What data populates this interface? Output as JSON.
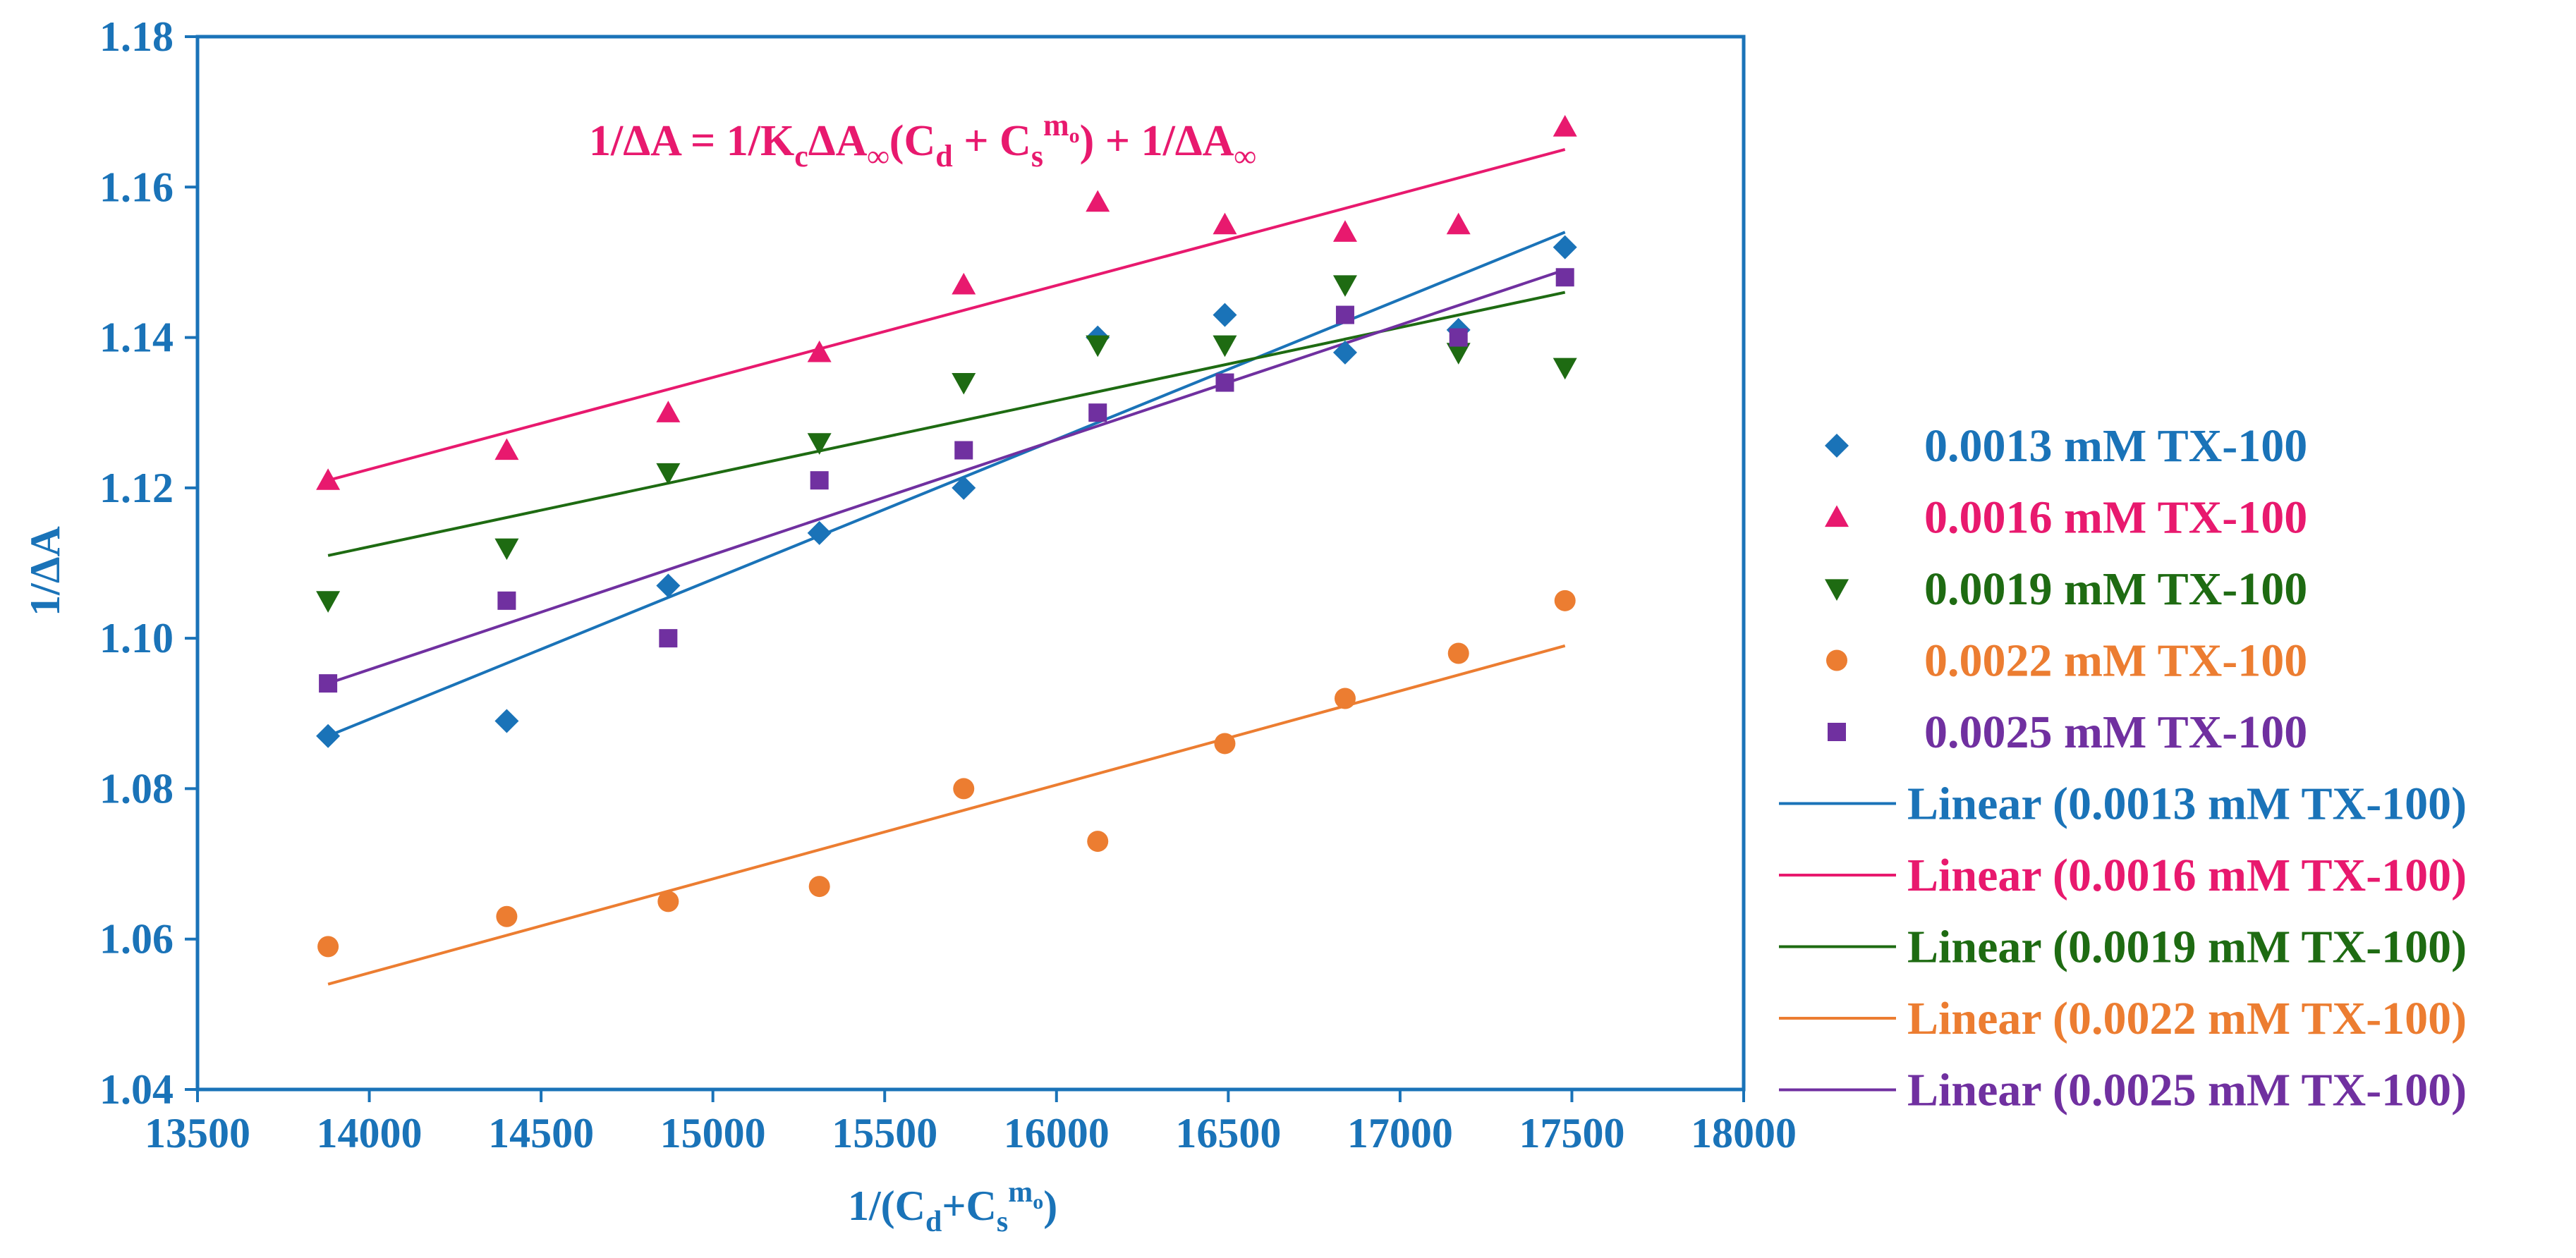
{
  "chart_data": {
    "type": "scatter",
    "title": "",
    "equation": {
      "lhs": "1/ΔA = 1/K",
      "sub_c": "c",
      "mid1": "ΔA",
      "sub_inf": "∞",
      "mid2": "(C",
      "sub_d": "d",
      "mid3": " + C",
      "sub_s": "s",
      "sup_mo": "m",
      "sup_o": "o",
      "mid4": ") + 1/ΔA",
      "sub_inf2": "∞"
    },
    "xlabel": {
      "pre": "1/(C",
      "sub_d": "d",
      "plus": "+C",
      "sub_s": "s",
      "sup_m": "m",
      "sup_o": "o",
      "post": ")"
    },
    "ylabel": "1/ΔA",
    "xlim": [
      13500,
      18000
    ],
    "ylim": [
      1.04,
      1.18
    ],
    "x_ticks": [
      13500,
      14000,
      14500,
      15000,
      15500,
      16000,
      16500,
      17000,
      17500,
      18000
    ],
    "y_ticks": [
      1.04,
      1.06,
      1.08,
      1.1,
      1.12,
      1.14,
      1.16,
      1.18
    ],
    "x_tick_labels": [
      "13500",
      "14000",
      "14500",
      "15000",
      "15500",
      "16000",
      "16500",
      "17000",
      "17500",
      "18000"
    ],
    "y_tick_labels": [
      "1.04",
      "1.06",
      "1.08",
      "1.10",
      "1.12",
      "1.14",
      "1.16",
      "1.18"
    ],
    "x": [
      13880,
      14400,
      14870,
      15310,
      15730,
      16120,
      16490,
      16840,
      17170,
      17480
    ],
    "series": [
      {
        "name": "0.0013 mM TX-100",
        "marker": "diamond",
        "color": "#1a73b8",
        "values": [
          1.087,
          1.089,
          1.107,
          1.114,
          1.12,
          1.14,
          1.143,
          1.138,
          1.141,
          1.152
        ],
        "trend_name": "Linear (0.0013 mM TX-100)",
        "trend": [
          1.087,
          1.154
        ]
      },
      {
        "name": "0.0016 mM TX-100",
        "marker": "triangle-up",
        "color": "#e8196e",
        "values": [
          1.121,
          1.125,
          1.13,
          1.138,
          1.147,
          1.158,
          1.155,
          1.154,
          1.155,
          1.168
        ],
        "trend_name": "Linear (0.0016 mM TX-100)",
        "trend": [
          1.121,
          1.165
        ]
      },
      {
        "name": "0.0019 mM TX-100",
        "marker": "triangle-down",
        "color": "#1e6b12",
        "values": [
          1.105,
          1.112,
          1.122,
          1.126,
          1.134,
          1.139,
          1.139,
          1.147,
          1.138,
          1.136
        ],
        "trend_name": "Linear (0.0019 mM TX-100)",
        "trend": [
          1.111,
          1.146
        ]
      },
      {
        "name": "0.0022 mM TX-100",
        "marker": "circle",
        "color": "#ec7d31",
        "values": [
          1.059,
          1.063,
          1.065,
          1.067,
          1.08,
          1.073,
          1.086,
          1.092,
          1.098,
          1.105
        ],
        "trend_name": "Linear (0.0022 mM TX-100)",
        "trend": [
          1.054,
          1.099
        ]
      },
      {
        "name": "0.0025 mM TX-100",
        "marker": "square",
        "color": "#7030a0",
        "values": [
          1.094,
          1.105,
          1.1,
          1.121,
          1.125,
          1.13,
          1.134,
          1.143,
          1.14,
          1.148
        ],
        "trend_name": "Linear (0.0025 mM TX-100)",
        "trend": [
          1.094,
          1.149
        ]
      }
    ],
    "legend_position": "right",
    "grid": false
  }
}
